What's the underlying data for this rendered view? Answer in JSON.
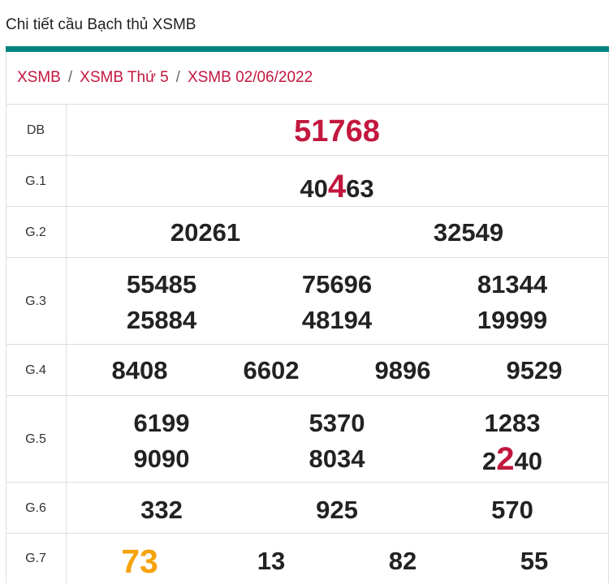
{
  "page": {
    "title": "Chi tiết cầu Bạch thủ XSMB"
  },
  "breadcrumb": {
    "items": [
      "XSMB",
      "XSMB Thứ 5",
      "XSMB 02/06/2022"
    ],
    "separator": "/"
  },
  "results": {
    "db": {
      "label": "DB",
      "values": [
        "51768"
      ]
    },
    "g1": {
      "label": "G.1",
      "pre": "40",
      "highlight": "4",
      "post": "63"
    },
    "g2": {
      "label": "G.2",
      "values": [
        "20261",
        "32549"
      ]
    },
    "g3": {
      "label": "G.3",
      "values": [
        "55485",
        "75696",
        "81344",
        "25884",
        "48194",
        "19999"
      ]
    },
    "g4": {
      "label": "G.4",
      "values": [
        "8408",
        "6602",
        "9896",
        "9529"
      ]
    },
    "g5": {
      "label": "G.5",
      "values": [
        "6199",
        "5370",
        "1283",
        "9090",
        "8034"
      ],
      "last": {
        "pre": "2",
        "highlight": "2",
        "post": "40"
      }
    },
    "g6": {
      "label": "G.6",
      "values": [
        "332",
        "925",
        "570"
      ]
    },
    "g7": {
      "label": "G.7",
      "values": [
        "73",
        "13",
        "82",
        "55"
      ]
    }
  },
  "colors": {
    "accent": "#00837f",
    "highlight": "#c2173e",
    "gold": "#f5a30a"
  }
}
